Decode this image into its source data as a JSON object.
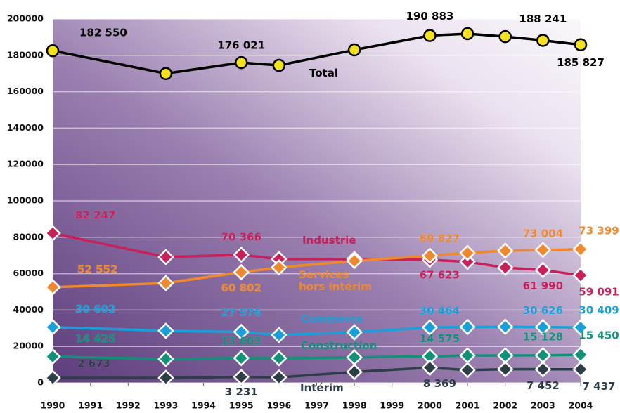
{
  "chart_data": {
    "type": "line",
    "x": [
      1990,
      1993,
      1995,
      1996,
      1998,
      2000,
      2001,
      2002,
      2003,
      2004
    ],
    "xlim": [
      1990,
      2004
    ],
    "xticks": [
      1990,
      1991,
      1992,
      1993,
      1994,
      1995,
      1996,
      1997,
      1998,
      1999,
      2000,
      2001,
      2002,
      2003,
      2004
    ],
    "ylim": [
      0,
      200000
    ],
    "yticks": [
      0,
      20000,
      40000,
      60000,
      80000,
      100000,
      120000,
      140000,
      160000,
      180000,
      200000
    ],
    "grid": true,
    "series": [
      {
        "name": "Total",
        "color": "#000000",
        "marker_color": "#f5e11c",
        "marker": "circle",
        "values": [
          182550,
          170000,
          176021,
          174500,
          183000,
          190883,
          191900,
          190300,
          188241,
          185827
        ],
        "value_labels": [
          "182 550",
          null,
          "176 021",
          null,
          null,
          "190 883",
          null,
          null,
          "188 241",
          "185 827"
        ]
      },
      {
        "name": "Industrie",
        "color": "#c8205a",
        "marker": "diamond",
        "values": [
          82247,
          69100,
          70366,
          68000,
          68000,
          67623,
          66500,
          63300,
          61990,
          59091
        ],
        "value_labels": [
          "82 247",
          null,
          "70 366",
          null,
          null,
          "67 623",
          null,
          null,
          "61 990",
          "59 091"
        ]
      },
      {
        "name": "Services hors intérim",
        "color": "#f0892e",
        "marker": "diamond",
        "values": [
          52552,
          54800,
          60802,
          63400,
          67000,
          69827,
          71400,
          72600,
          73004,
          73399
        ],
        "value_labels": [
          "52 552",
          null,
          "60 802",
          null,
          null,
          "69 827",
          null,
          null,
          "73 004",
          "73 399"
        ]
      },
      {
        "name": "Commerce",
        "color": "#1aa0d8",
        "marker": "diamond",
        "values": [
          30602,
          28600,
          27976,
          26300,
          27800,
          30464,
          30700,
          30800,
          30626,
          30409
        ],
        "value_labels": [
          "30 602",
          null,
          "27 976",
          null,
          null,
          "30 464",
          null,
          null,
          "30 626",
          "30 409"
        ]
      },
      {
        "name": "Construction",
        "color": "#12917a",
        "marker": "diamond",
        "values": [
          14425,
          13100,
          13603,
          13500,
          14000,
          14575,
          15000,
          15000,
          15128,
          15450
        ],
        "value_labels": [
          "14 425",
          null,
          "13 603",
          null,
          null,
          "14 575",
          null,
          null,
          "15 128",
          "15 450"
        ]
      },
      {
        "name": "Intérim",
        "color": "#2d3e48",
        "marker": "diamond",
        "values": [
          2673,
          2700,
          3231,
          3000,
          6000,
          8369,
          7000,
          7500,
          7452,
          7437
        ],
        "value_labels": [
          "2 673",
          null,
          "3 231",
          null,
          null,
          "8 369",
          null,
          null,
          "7 452",
          "7 437"
        ]
      }
    ]
  }
}
